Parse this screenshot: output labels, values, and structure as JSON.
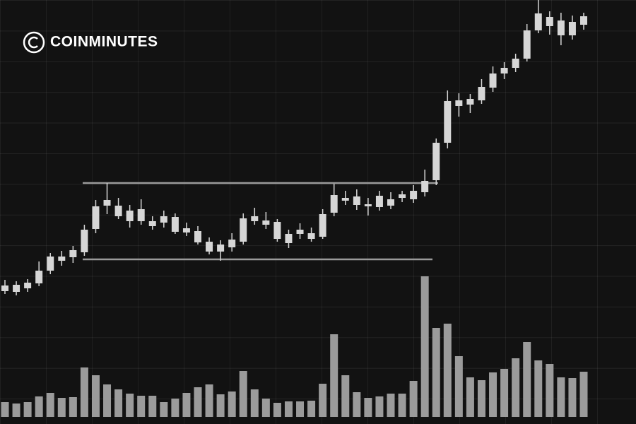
{
  "chart_data": {
    "type": "candlestick",
    "title": "COINMINUTES",
    "open": [
      188,
      197,
      192,
      199,
      217,
      231,
      236,
      243,
      276,
      309,
      309,
      302,
      287,
      287,
      285,
      293,
      277,
      273,
      258,
      244,
      250,
      258,
      287,
      288,
      286,
      269,
      269,
      270,
      265,
      299,
      320,
      322,
      311,
      307,
      318,
      320,
      318,
      328,
      345,
      398,
      458,
      452,
      458,
      476,
      496,
      504,
      517,
      557,
      576,
      571,
      550,
      565
    ],
    "high": [
      204,
      202,
      205,
      230,
      242,
      245,
      252,
      282,
      317,
      341,
      320,
      310,
      318,
      294,
      302,
      298,
      285,
      280,
      264,
      260,
      270,
      298,
      306,
      300,
      290,
      275,
      284,
      278,
      304,
      340,
      330,
      332,
      320,
      330,
      328,
      330,
      338,
      360,
      404,
      472,
      468,
      467,
      488,
      506,
      512,
      524,
      566,
      600,
      584,
      582,
      578,
      582
    ],
    "low": [
      184,
      182,
      187,
      195,
      212,
      224,
      228,
      238,
      270,
      297,
      290,
      278,
      282,
      275,
      278,
      269,
      266,
      254,
      240,
      231,
      244,
      254,
      282,
      276,
      258,
      249,
      262,
      258,
      262,
      294,
      310,
      303,
      295,
      302,
      304,
      314,
      313,
      322,
      338,
      390,
      435,
      440,
      453,
      470,
      488,
      498,
      513,
      553,
      551,
      536,
      544,
      558
    ],
    "close": [
      196,
      187,
      200,
      217,
      237,
      237,
      246,
      275,
      308,
      317,
      294,
      287,
      304,
      280,
      294,
      272,
      271,
      257,
      244,
      254,
      261,
      291,
      294,
      282,
      262,
      256,
      275,
      262,
      297,
      324,
      316,
      310,
      308,
      323,
      309,
      325,
      330,
      344,
      398,
      457,
      450,
      460,
      477,
      496,
      504,
      517,
      557,
      581,
      563,
      550,
      569,
      577
    ],
    "volume": [
      21,
      19,
      21,
      29,
      34,
      27,
      28,
      70,
      59,
      46,
      39,
      33,
      30,
      30,
      21,
      26,
      34,
      42,
      46,
      32,
      36,
      65,
      39,
      26,
      20,
      22,
      22,
      23,
      47,
      117,
      59,
      35,
      27,
      29,
      33,
      33,
      51,
      199,
      126,
      132,
      86,
      56,
      52,
      63,
      68,
      83,
      106,
      80,
      75,
      56,
      55,
      64
    ],
    "ylim": [
      0,
      600
    ],
    "volume_ylim": [
      0,
      590
    ],
    "candle_color": "#d6d6d6",
    "volume_color": "#9b9b9b"
  }
}
